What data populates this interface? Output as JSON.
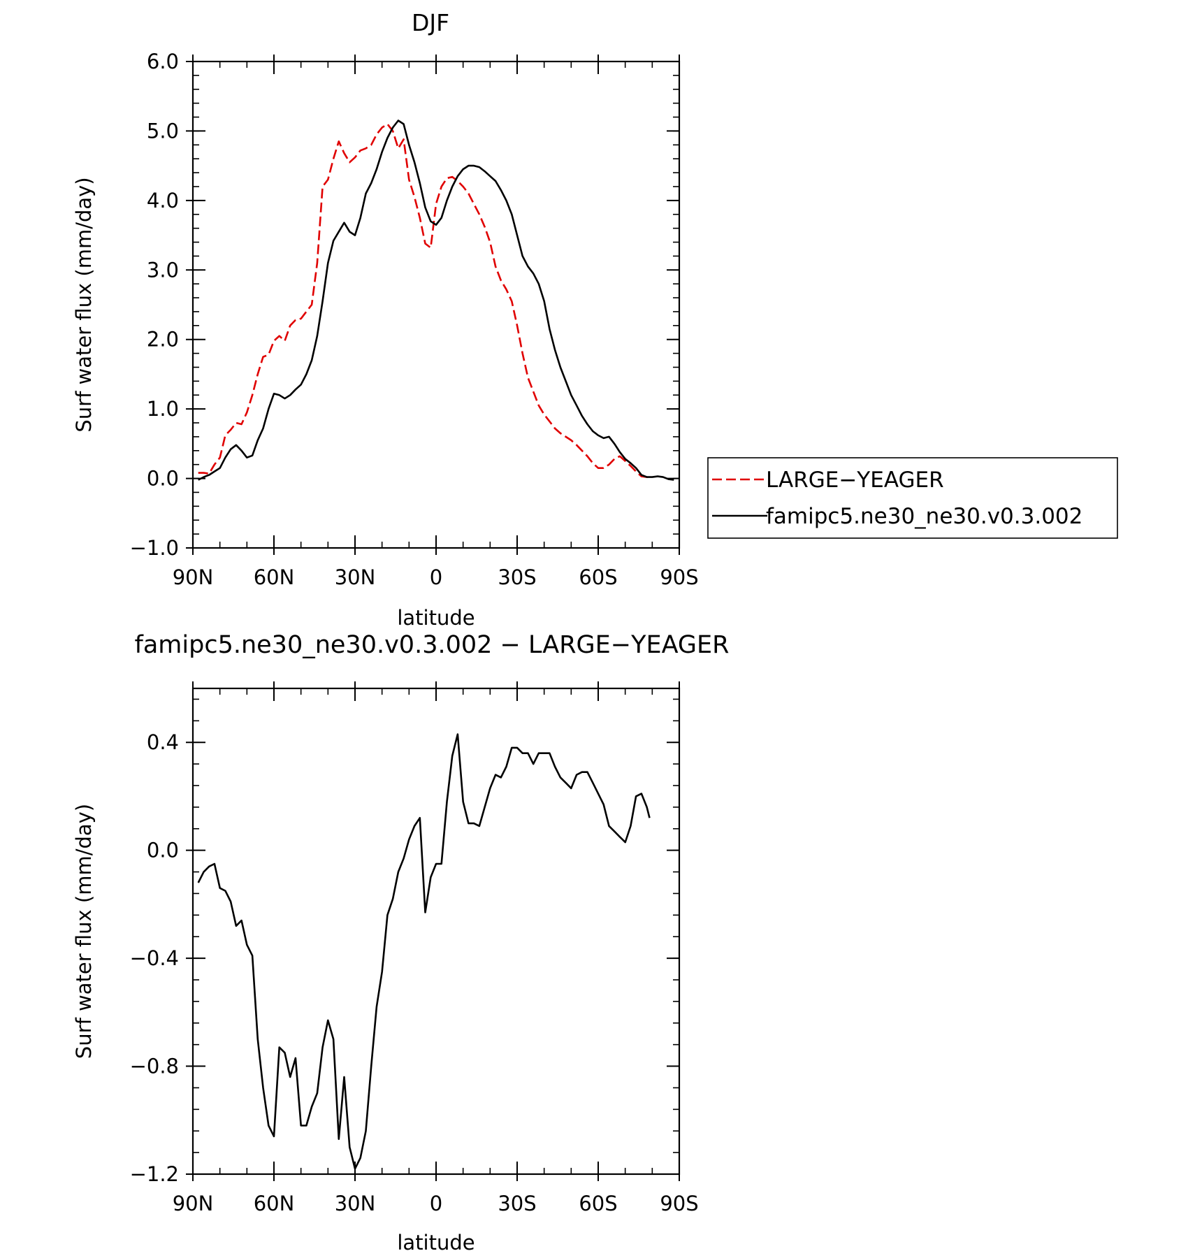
{
  "chart_data": [
    {
      "type": "line",
      "title": "DJF",
      "xlabel": "latitude",
      "ylabel": "Surf water flux (mm/day)",
      "xlim": [
        90,
        -90
      ],
      "ylim": [
        -1.0,
        6.0
      ],
      "x_ticks": [
        {
          "value": 90,
          "label": "90N"
        },
        {
          "value": 60,
          "label": "60N"
        },
        {
          "value": 30,
          "label": "30N"
        },
        {
          "value": 0,
          "label": "0"
        },
        {
          "value": -30,
          "label": "30S"
        },
        {
          "value": -60,
          "label": "60S"
        },
        {
          "value": -90,
          "label": "90S"
        }
      ],
      "y_ticks": [
        {
          "value": -1.0,
          "label": "−1.0"
        },
        {
          "value": 0.0,
          "label": "0.0"
        },
        {
          "value": 1.0,
          "label": "1.0"
        },
        {
          "value": 2.0,
          "label": "2.0"
        },
        {
          "value": 3.0,
          "label": "3.0"
        },
        {
          "value": 4.0,
          "label": "4.0"
        },
        {
          "value": 5.0,
          "label": "5.0"
        },
        {
          "value": 6.0,
          "label": "6.0"
        }
      ],
      "legend_position": "right",
      "series": [
        {
          "name": "LARGE−YEAGER",
          "color": "#e00000",
          "dash": true,
          "x": [
            88,
            86,
            84,
            82,
            80,
            78,
            76,
            74,
            72,
            70,
            68,
            66,
            64,
            62,
            60,
            58,
            56,
            54,
            52,
            50,
            48,
            46,
            44,
            42,
            40,
            38,
            36,
            34,
            32,
            30,
            28,
            26,
            24,
            22,
            20,
            18,
            16,
            14,
            12,
            10,
            8,
            6,
            4,
            2,
            0,
            -2,
            -4,
            -6,
            -8,
            -10,
            -12,
            -14,
            -16,
            -18,
            -20,
            -22,
            -24,
            -26,
            -28,
            -30,
            -32,
            -34,
            -36,
            -38,
            -40,
            -42,
            -44,
            -46,
            -48,
            -50,
            -52,
            -54,
            -56,
            -58,
            -60,
            -62,
            -64,
            -66,
            -68,
            -70,
            -72,
            -74,
            -76,
            -78,
            -79
          ],
          "y": [
            0.08,
            0.08,
            0.07,
            0.2,
            0.3,
            0.62,
            0.7,
            0.8,
            0.78,
            0.95,
            1.2,
            1.5,
            1.75,
            1.78,
            1.98,
            2.05,
            1.98,
            2.2,
            2.28,
            2.3,
            2.4,
            2.5,
            3.1,
            4.2,
            4.3,
            4.6,
            4.85,
            4.68,
            4.55,
            4.62,
            4.72,
            4.75,
            4.8,
            4.95,
            5.05,
            5.1,
            5.0,
            4.75,
            4.88,
            4.3,
            4.05,
            3.75,
            3.38,
            3.32,
            3.95,
            4.2,
            4.32,
            4.34,
            4.28,
            4.2,
            4.1,
            3.95,
            3.8,
            3.62,
            3.4,
            3.05,
            2.85,
            2.72,
            2.55,
            2.2,
            1.8,
            1.45,
            1.25,
            1.05,
            0.92,
            0.82,
            0.72,
            0.65,
            0.6,
            0.55,
            0.48,
            0.4,
            0.32,
            0.22,
            0.15,
            0.15,
            0.2,
            0.28,
            0.32,
            0.25,
            0.18,
            0.1,
            0.03,
            0.02,
            0.01
          ]
        },
        {
          "name": "famipc5.ne30_ne30.v0.3.002",
          "color": "#000000",
          "dash": false,
          "x": [
            88,
            86,
            84,
            82,
            80,
            78,
            76,
            74,
            72,
            70,
            68,
            66,
            64,
            62,
            60,
            58,
            56,
            54,
            52,
            50,
            48,
            46,
            44,
            42,
            40,
            38,
            36,
            34,
            32,
            30,
            28,
            26,
            24,
            22,
            20,
            18,
            16,
            14,
            12,
            10,
            8,
            6,
            4,
            2,
            0,
            -2,
            -4,
            -6,
            -8,
            -10,
            -12,
            -14,
            -16,
            -18,
            -20,
            -22,
            -24,
            -26,
            -28,
            -30,
            -32,
            -34,
            -36,
            -38,
            -40,
            -42,
            -44,
            -46,
            -48,
            -50,
            -52,
            -54,
            -56,
            -58,
            -60,
            -62,
            -64,
            -66,
            -68,
            -70,
            -72,
            -74,
            -76,
            -78,
            -80,
            -82,
            -84,
            -86,
            -88
          ],
          "y": [
            -0.02,
            0.02,
            0.05,
            0.1,
            0.15,
            0.3,
            0.42,
            0.48,
            0.4,
            0.3,
            0.33,
            0.55,
            0.72,
            1.0,
            1.22,
            1.2,
            1.15,
            1.2,
            1.28,
            1.35,
            1.5,
            1.7,
            2.05,
            2.55,
            3.1,
            3.42,
            3.55,
            3.68,
            3.55,
            3.5,
            3.75,
            4.1,
            4.25,
            4.45,
            4.7,
            4.9,
            5.05,
            5.15,
            5.1,
            4.8,
            4.55,
            4.25,
            3.9,
            3.7,
            3.65,
            3.75,
            4.0,
            4.2,
            4.35,
            4.45,
            4.5,
            4.5,
            4.48,
            4.42,
            4.35,
            4.28,
            4.15,
            4.0,
            3.8,
            3.5,
            3.2,
            3.05,
            2.95,
            2.8,
            2.55,
            2.15,
            1.85,
            1.6,
            1.4,
            1.2,
            1.05,
            0.9,
            0.78,
            0.68,
            0.62,
            0.58,
            0.6,
            0.5,
            0.38,
            0.28,
            0.22,
            0.15,
            0.05,
            0.02,
            0.02,
            0.03,
            0.02,
            -0.01,
            -0.02
          ]
        }
      ]
    },
    {
      "type": "line",
      "title": "famipc5.ne30_ne30.v0.3.002 − LARGE−YEAGER",
      "xlabel": "latitude",
      "ylabel": "Surf water flux (mm/day)",
      "xlim": [
        90,
        -90
      ],
      "ylim": [
        -1.2,
        0.6
      ],
      "x_ticks": [
        {
          "value": 90,
          "label": "90N"
        },
        {
          "value": 60,
          "label": "60N"
        },
        {
          "value": 30,
          "label": "30N"
        },
        {
          "value": 0,
          "label": "0"
        },
        {
          "value": -30,
          "label": "30S"
        },
        {
          "value": -60,
          "label": "60S"
        },
        {
          "value": -90,
          "label": "90S"
        }
      ],
      "y_ticks": [
        {
          "value": -1.2,
          "label": "−1.2"
        },
        {
          "value": -0.8,
          "label": "−0.8"
        },
        {
          "value": -0.4,
          "label": "−0.4"
        },
        {
          "value": 0.0,
          "label": "0.0"
        },
        {
          "value": 0.4,
          "label": "0.4"
        }
      ],
      "series": [
        {
          "color": "#000000",
          "dash": false,
          "x": [
            88,
            86,
            84,
            82,
            80,
            78,
            76,
            74,
            72,
            70,
            68,
            66,
            64,
            62,
            60,
            58,
            56,
            54,
            52,
            50,
            48,
            46,
            44,
            42,
            40,
            38,
            36,
            34,
            32,
            30,
            28,
            26,
            24,
            22,
            20,
            18,
            16,
            14,
            12,
            10,
            8,
            6,
            4,
            2,
            0,
            -2,
            -4,
            -6,
            -8,
            -10,
            -12,
            -14,
            -16,
            -18,
            -20,
            -22,
            -24,
            -26,
            -28,
            -30,
            -32,
            -34,
            -36,
            -38,
            -40,
            -42,
            -44,
            -46,
            -48,
            -50,
            -52,
            -54,
            -56,
            -58,
            -60,
            -62,
            -64,
            -66,
            -68,
            -70,
            -72,
            -74,
            -76,
            -78,
            -79
          ],
          "y": [
            -0.12,
            -0.08,
            -0.06,
            -0.05,
            -0.14,
            -0.15,
            -0.19,
            -0.28,
            -0.26,
            -0.35,
            -0.39,
            -0.7,
            -0.88,
            -1.02,
            -1.06,
            -0.73,
            -0.75,
            -0.84,
            -0.77,
            -1.02,
            -1.02,
            -0.95,
            -0.9,
            -0.73,
            -0.63,
            -0.7,
            -1.07,
            -0.84,
            -1.1,
            -1.18,
            -1.14,
            -1.04,
            -0.8,
            -0.58,
            -0.45,
            -0.24,
            -0.18,
            -0.08,
            -0.03,
            0.04,
            0.09,
            0.12,
            -0.23,
            -0.1,
            -0.05,
            -0.05,
            0.18,
            0.35,
            0.43,
            0.18,
            0.1,
            0.1,
            0.09,
            0.16,
            0.23,
            0.28,
            0.27,
            0.31,
            0.38,
            0.38,
            0.36,
            0.36,
            0.32,
            0.36,
            0.36,
            0.36,
            0.31,
            0.27,
            0.25,
            0.23,
            0.28,
            0.29,
            0.29,
            0.25,
            0.21,
            0.17,
            0.09,
            0.07,
            0.05,
            0.03,
            0.09,
            0.2,
            0.21,
            0.16,
            0.12
          ]
        }
      ]
    }
  ]
}
